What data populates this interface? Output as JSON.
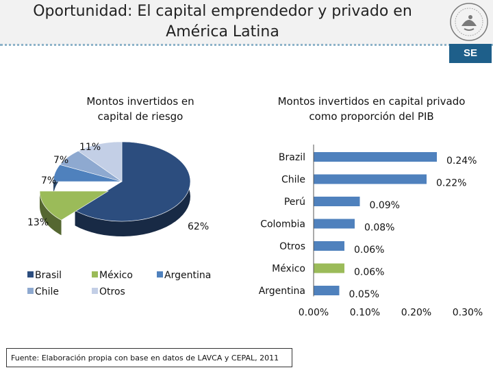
{
  "header": {
    "title_line1": "Oportunidad: El capital emprendedor y privado en",
    "title_line2": "América Latina",
    "badge": "SE"
  },
  "pie": {
    "subtitle_line1": "Montos invertidos en",
    "subtitle_line2": "capital de riesgo"
  },
  "bars": {
    "subtitle_line1": "Montos invertidos en capital privado",
    "subtitle_line2": "como proporción del PIB"
  },
  "source": "Fuente: Elaboración propia con base en datos de LAVCA y CEPAL, 2011",
  "colors": {
    "bar_default": "#4f81bd",
    "bar_highlight": "#9bbb59",
    "brasil": "#2c4d7e",
    "mexico": "#9bbb59",
    "argentina": "#4f81bd",
    "chile": "#8ea9d0",
    "otros": "#c3cfe6"
  },
  "chart_data": [
    {
      "type": "pie",
      "title": "Montos invertidos en capital de riesgo",
      "slices": [
        {
          "name": "Brasil",
          "value": 62,
          "label": "62%"
        },
        {
          "name": "México",
          "value": 13,
          "label": "13%"
        },
        {
          "name": "Argentina",
          "value": 7,
          "label": "7%"
        },
        {
          "name": "Chile",
          "value": 7,
          "label": "7%"
        },
        {
          "name": "Otros",
          "value": 11,
          "label": "11%"
        }
      ],
      "legend": [
        "Brasil",
        "México",
        "Argentina",
        "Chile",
        "Otros"
      ],
      "legend_position": "bottom"
    },
    {
      "type": "bar",
      "orientation": "horizontal",
      "title": "Montos invertidos en capital privado como proporción del PIB",
      "categories": [
        "Brazil",
        "Chile",
        "Perú",
        "Colombia",
        "Otros",
        "México",
        "Argentina"
      ],
      "values": [
        0.24,
        0.22,
        0.09,
        0.08,
        0.06,
        0.06,
        0.05
      ],
      "value_labels": [
        "0.24%",
        "0.22%",
        "0.09%",
        "0.08%",
        "0.06%",
        "0.06%",
        "0.05%"
      ],
      "highlight": "México",
      "xlim": [
        0,
        0.3
      ],
      "xticks": [
        "0.00%",
        "0.10%",
        "0.20%",
        "0.30%"
      ],
      "grid": false
    }
  ]
}
